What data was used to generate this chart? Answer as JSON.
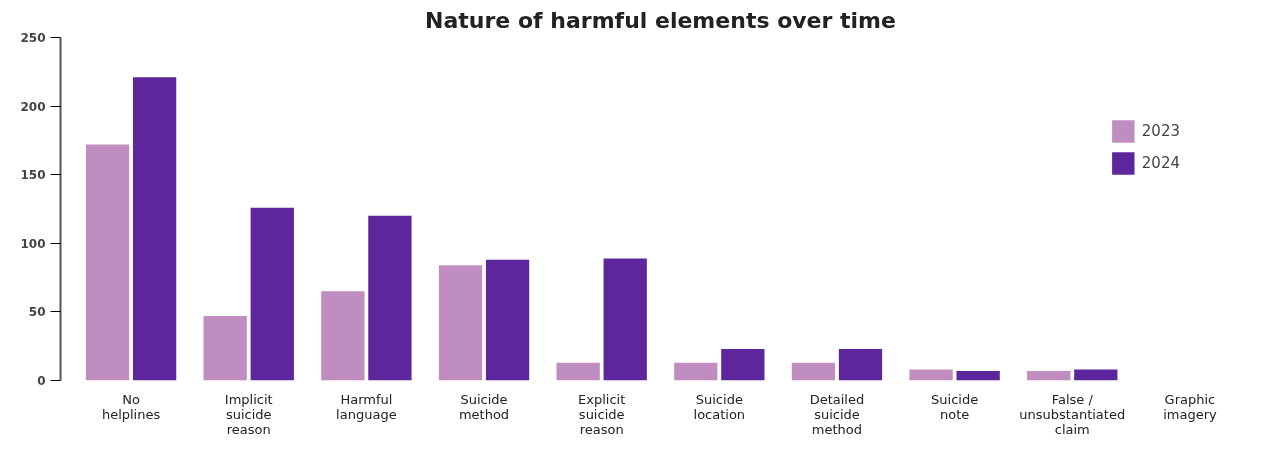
{
  "chart_data": {
    "type": "bar",
    "title": "Nature of harmful elements over time",
    "categories": [
      "No helplines",
      "Implicit suicide reason",
      "Harmful language",
      "Suicide method",
      "Explicit suicide reason",
      "Suicide location",
      "Detailed suicide method",
      "Suicide note",
      "False / unsubstantiated claim",
      "Graphic imagery"
    ],
    "series": [
      {
        "name": "2023",
        "color": "#bf8dc0",
        "values": [
          172,
          47,
          65,
          84,
          13,
          13,
          13,
          8,
          7,
          null
        ]
      },
      {
        "name": "2024",
        "color": "#5e269c",
        "values": [
          221,
          126,
          120,
          88,
          89,
          23,
          23,
          7,
          8,
          null
        ]
      }
    ],
    "ylim": [
      0,
      250
    ],
    "yticks": [
      0,
      50,
      100,
      150,
      200,
      250
    ],
    "grid": false,
    "legend": "top right"
  }
}
